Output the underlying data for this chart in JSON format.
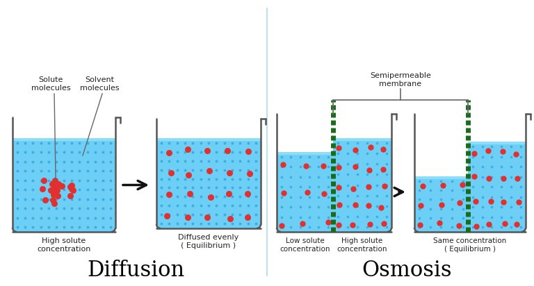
{
  "bg_color": "#ffffff",
  "water_color": "#6dcff6",
  "beaker_edge_color": "#555555",
  "solute_color": "#e03030",
  "solvent_dot_color": "#3aaee0",
  "membrane_color": "#1a6b1a",
  "membrane_gap_color": "#ffffff",
  "arrow_color": "#111111",
  "divider_color": "#aaddee",
  "title_diffusion": "Diffusion",
  "title_osmosis": "Osmosis",
  "label_solute_molecules": "Solute\nmolecules",
  "label_solvent_molecules": "Solvent\nmolecules",
  "label_high_conc": "High solute\nconcentration",
  "label_diffused": "Diffused evenly\n( Equilibrium )",
  "label_low_conc": "Low solute\nconcentration",
  "label_high_conc2": "High solute\nconcentration",
  "label_same_conc": "Same concentration\n( Equilibrium )",
  "label_semipermeable": "Semipermeable\nmembrane",
  "annot_line_color": "#666666",
  "text_color": "#222222"
}
